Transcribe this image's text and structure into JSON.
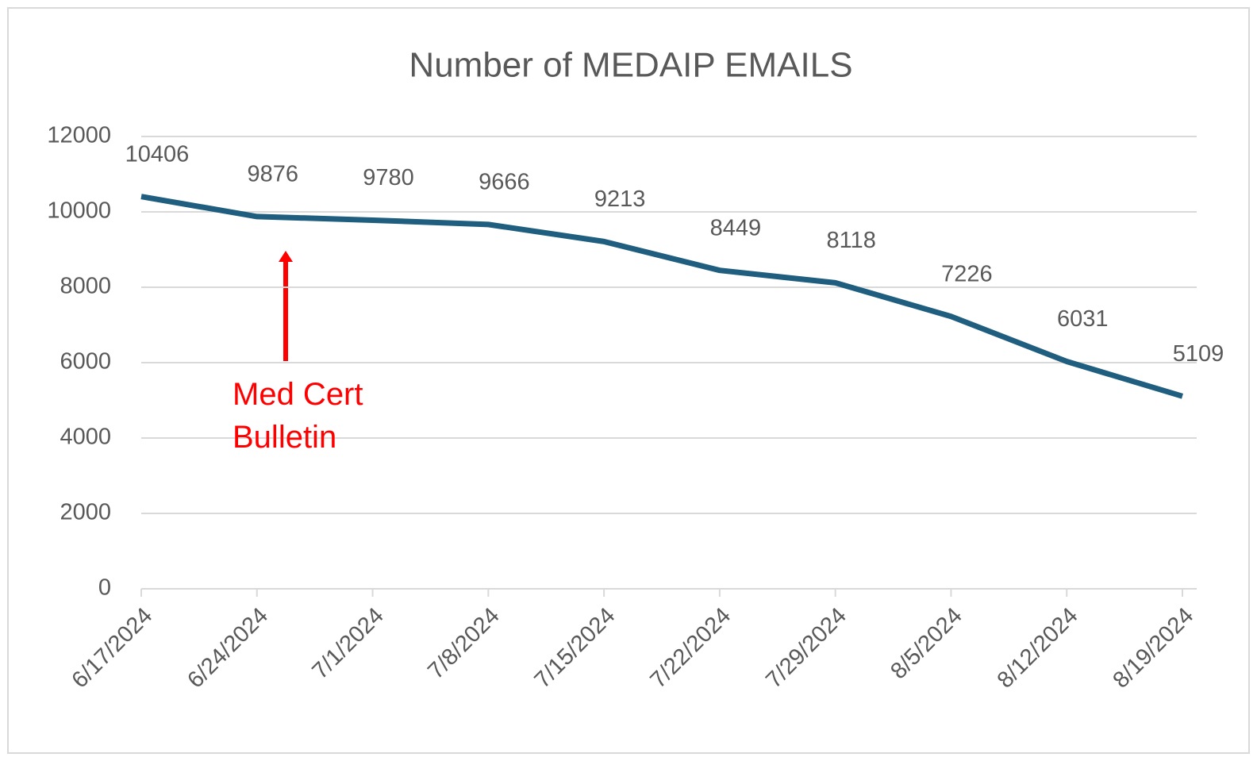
{
  "chart_data": {
    "type": "line",
    "title": "Number of MEDAIP EMAILS",
    "categories": [
      "6/17/2024",
      "6/24/2024",
      "7/1/2024",
      "7/8/2024",
      "7/15/2024",
      "7/22/2024",
      "7/29/2024",
      "8/5/2024",
      "8/12/2024",
      "8/19/2024"
    ],
    "series": [
      {
        "name": "Number of MEDAIP EMAILS",
        "color": "#1f5e7e",
        "values": [
          10406,
          9876,
          9780,
          9666,
          9213,
          8449,
          8118,
          7226,
          6031,
          5109
        ]
      }
    ],
    "ylim": [
      0,
      12000
    ],
    "yticks": [
      0,
      2000,
      4000,
      6000,
      8000,
      10000,
      12000
    ],
    "grid": true,
    "annotation": {
      "text": "Med Cert Bulletin",
      "color": "#ff0000"
    }
  }
}
